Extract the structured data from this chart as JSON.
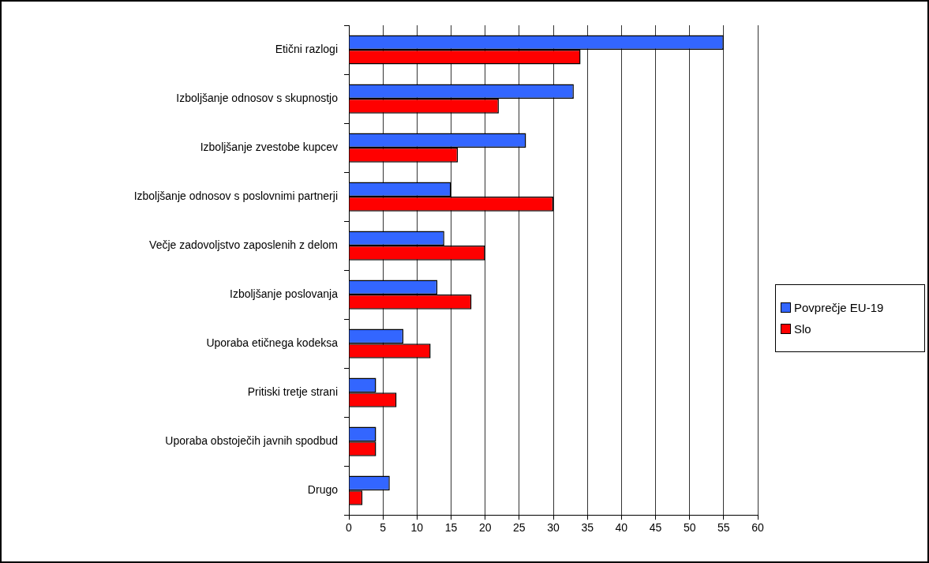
{
  "chart_data": {
    "type": "bar",
    "orientation": "horizontal",
    "categories": [
      "Etični razlogi",
      "Izboljšanje odnosov s skupnostjo",
      "Izboljšanje zvestobe kupcev",
      "Izboljšanje odnosov s poslovnimi partnerji",
      "Večje zadovoljstvo zaposlenih z delom",
      "Izboljšanje poslovanja",
      "Uporaba etičnega kodeksa",
      "Pritiski tretje strani",
      "Uporaba obstoječih javnih spodbud",
      "Drugo"
    ],
    "series": [
      {
        "name": "Povprečje EU-19",
        "color": "#3366ff",
        "values": [
          55,
          33,
          26,
          15,
          14,
          13,
          8,
          4,
          4,
          6
        ]
      },
      {
        "name": "Slo",
        "color": "#ff0000",
        "values": [
          34,
          22,
          16,
          30,
          20,
          18,
          12,
          7,
          4,
          2
        ]
      }
    ],
    "xlim": [
      0,
      60
    ],
    "xticks": [
      0,
      5,
      10,
      15,
      20,
      25,
      30,
      35,
      40,
      45,
      50,
      55,
      60
    ],
    "grid": "x",
    "legend": "right"
  }
}
